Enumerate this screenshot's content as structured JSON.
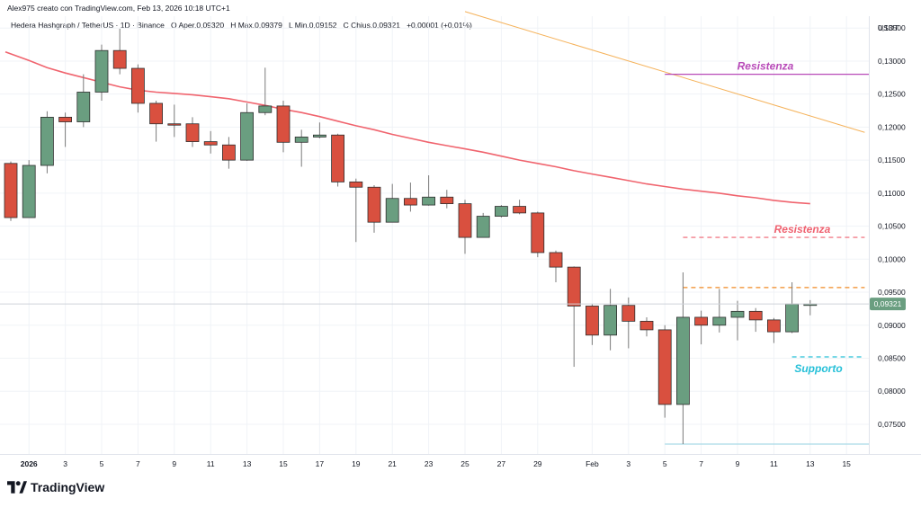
{
  "header": {
    "credit": "Alex975 creato con TradingView.com, Feb 13, 2026 10:18 UTC+1",
    "symbol_line": "Hedera Hashgraph / TetherUS · 1D · Binance",
    "open_label": "O",
    "open_value": "Aper.0,09320",
    "high_label": "H",
    "high_value": "Max.0,09379",
    "low_label": "L",
    "low_value": "Min.0,09152",
    "close_label": "C",
    "close_value": "Chius.0,09321",
    "change_value": "+0,00001 (+0,01%)"
  },
  "logo": {
    "text": "TradingView"
  },
  "colors": {
    "up": "#6a9e80",
    "down": "#d9503f",
    "ma": "#f0646e",
    "resist_magenta": "#b84ab8",
    "resist_red": "#ef6270",
    "support": "#26c0d8",
    "trend": "#f5b25a",
    "orange_dash": "#f08a24",
    "grid": "#f0f3f7"
  },
  "chart_data": {
    "type": "candlestick",
    "title": "Hedera Hashgraph / TetherUS · 1D · Binance",
    "currency_label": "USDT",
    "ylim": [
      0.0705,
      0.1368
    ],
    "y_ticks": [
      "0,13500",
      "0,13000",
      "0,12500",
      "0,12000",
      "0,11500",
      "0,11000",
      "0,10500",
      "0,10000",
      "0,09500",
      "0,09000",
      "0,08500",
      "0,08000",
      "0,07500"
    ],
    "y_tick_values": [
      0.135,
      0.13,
      0.125,
      0.12,
      0.115,
      0.11,
      0.105,
      0.1,
      0.095,
      0.09,
      0.085,
      0.08,
      0.075
    ],
    "x_ticks": [
      {
        "label": "2026",
        "index": 1,
        "bold": true
      },
      {
        "label": "3",
        "index": 3
      },
      {
        "label": "5",
        "index": 5
      },
      {
        "label": "7",
        "index": 7
      },
      {
        "label": "9",
        "index": 9
      },
      {
        "label": "11",
        "index": 11
      },
      {
        "label": "13",
        "index": 13
      },
      {
        "label": "15",
        "index": 15
      },
      {
        "label": "17",
        "index": 17
      },
      {
        "label": "19",
        "index": 19
      },
      {
        "label": "21",
        "index": 21
      },
      {
        "label": "23",
        "index": 23
      },
      {
        "label": "25",
        "index": 25
      },
      {
        "label": "27",
        "index": 27
      },
      {
        "label": "29",
        "index": 29
      },
      {
        "label": "Feb",
        "index": 32
      },
      {
        "label": "3",
        "index": 34
      },
      {
        "label": "5",
        "index": 36
      },
      {
        "label": "7",
        "index": 38
      },
      {
        "label": "9",
        "index": 40
      },
      {
        "label": "11",
        "index": 42
      },
      {
        "label": "13",
        "index": 44
      },
      {
        "label": "15",
        "index": 46
      }
    ],
    "candles": [
      {
        "o": 0.1145,
        "h": 0.1148,
        "l": 0.1058,
        "c": 0.1063
      },
      {
        "o": 0.1063,
        "h": 0.115,
        "l": 0.1063,
        "c": 0.1142
      },
      {
        "o": 0.1142,
        "h": 0.1224,
        "l": 0.113,
        "c": 0.1215
      },
      {
        "o": 0.1215,
        "h": 0.1222,
        "l": 0.117,
        "c": 0.1208
      },
      {
        "o": 0.1208,
        "h": 0.128,
        "l": 0.12,
        "c": 0.1253
      },
      {
        "o": 0.1253,
        "h": 0.1325,
        "l": 0.124,
        "c": 0.1316
      },
      {
        "o": 0.1316,
        "h": 0.1349,
        "l": 0.128,
        "c": 0.1289
      },
      {
        "o": 0.1289,
        "h": 0.1295,
        "l": 0.1222,
        "c": 0.1236
      },
      {
        "o": 0.1236,
        "h": 0.124,
        "l": 0.1178,
        "c": 0.1205
      },
      {
        "o": 0.1205,
        "h": 0.1234,
        "l": 0.1185,
        "c": 0.1203
      },
      {
        "o": 0.1205,
        "h": 0.1215,
        "l": 0.117,
        "c": 0.1178
      },
      {
        "o": 0.1178,
        "h": 0.1194,
        "l": 0.116,
        "c": 0.1173
      },
      {
        "o": 0.1173,
        "h": 0.1185,
        "l": 0.1137,
        "c": 0.115
      },
      {
        "o": 0.115,
        "h": 0.1236,
        "l": 0.1149,
        "c": 0.1222
      },
      {
        "o": 0.1222,
        "h": 0.129,
        "l": 0.1218,
        "c": 0.1232
      },
      {
        "o": 0.1232,
        "h": 0.124,
        "l": 0.1162,
        "c": 0.1177
      },
      {
        "o": 0.1177,
        "h": 0.1196,
        "l": 0.114,
        "c": 0.1185
      },
      {
        "o": 0.1185,
        "h": 0.1207,
        "l": 0.1183,
        "c": 0.1188
      },
      {
        "o": 0.1188,
        "h": 0.119,
        "l": 0.111,
        "c": 0.1117
      },
      {
        "o": 0.1117,
        "h": 0.1122,
        "l": 0.1026,
        "c": 0.1109
      },
      {
        "o": 0.1109,
        "h": 0.1112,
        "l": 0.104,
        "c": 0.1056
      },
      {
        "o": 0.1056,
        "h": 0.1114,
        "l": 0.1056,
        "c": 0.1092
      },
      {
        "o": 0.1092,
        "h": 0.1116,
        "l": 0.1072,
        "c": 0.1082
      },
      {
        "o": 0.1082,
        "h": 0.1127,
        "l": 0.1081,
        "c": 0.1094
      },
      {
        "o": 0.1094,
        "h": 0.1105,
        "l": 0.1077,
        "c": 0.1084
      },
      {
        "o": 0.1084,
        "h": 0.109,
        "l": 0.1008,
        "c": 0.1033
      },
      {
        "o": 0.1033,
        "h": 0.107,
        "l": 0.1033,
        "c": 0.1065
      },
      {
        "o": 0.1065,
        "h": 0.1082,
        "l": 0.1063,
        "c": 0.108
      },
      {
        "o": 0.108,
        "h": 0.109,
        "l": 0.1068,
        "c": 0.107
      },
      {
        "o": 0.107,
        "h": 0.1072,
        "l": 0.1003,
        "c": 0.101
      },
      {
        "o": 0.101,
        "h": 0.1013,
        "l": 0.0965,
        "c": 0.0988
      },
      {
        "o": 0.0988,
        "h": 0.0989,
        "l": 0.0837,
        "c": 0.0929
      },
      {
        "o": 0.0929,
        "h": 0.0932,
        "l": 0.087,
        "c": 0.0885
      },
      {
        "o": 0.0885,
        "h": 0.0955,
        "l": 0.0862,
        "c": 0.093
      },
      {
        "o": 0.093,
        "h": 0.0942,
        "l": 0.0865,
        "c": 0.0906
      },
      {
        "o": 0.0906,
        "h": 0.0912,
        "l": 0.0883,
        "c": 0.0893
      },
      {
        "o": 0.0893,
        "h": 0.09,
        "l": 0.076,
        "c": 0.078
      },
      {
        "o": 0.078,
        "h": 0.098,
        "l": 0.072,
        "c": 0.0912
      },
      {
        "o": 0.0912,
        "h": 0.0922,
        "l": 0.0871,
        "c": 0.09
      },
      {
        "o": 0.09,
        "h": 0.0955,
        "l": 0.0889,
        "c": 0.0912
      },
      {
        "o": 0.0912,
        "h": 0.0937,
        "l": 0.0877,
        "c": 0.0921
      },
      {
        "o": 0.0921,
        "h": 0.0926,
        "l": 0.089,
        "c": 0.0908
      },
      {
        "o": 0.0908,
        "h": 0.0911,
        "l": 0.0873,
        "c": 0.089
      },
      {
        "o": 0.089,
        "h": 0.0965,
        "l": 0.0888,
        "c": 0.0932
      },
      {
        "o": 0.0932,
        "h": 0.0938,
        "l": 0.0915,
        "c": 0.0932
      }
    ],
    "moving_average": {
      "index": [
        0,
        1,
        2,
        3,
        4,
        5,
        6,
        7,
        8,
        9,
        10,
        11,
        12,
        13,
        14,
        15,
        16,
        17,
        18,
        19,
        20,
        21,
        22,
        23,
        24,
        25,
        26,
        27,
        28,
        29,
        30,
        31,
        32,
        33,
        34,
        35,
        36,
        37,
        38,
        39,
        40,
        41,
        42,
        43,
        44
      ],
      "values": [
        0.1314,
        0.1301,
        0.129,
        0.1282,
        0.1275,
        0.1268,
        0.1261,
        0.1256,
        0.1253,
        0.1251,
        0.1249,
        0.1246,
        0.1243,
        0.1238,
        0.1233,
        0.1227,
        0.1222,
        0.1216,
        0.1209,
        0.1202,
        0.1196,
        0.1189,
        0.1183,
        0.1177,
        0.1172,
        0.1167,
        0.1162,
        0.1156,
        0.115,
        0.1145,
        0.114,
        0.1134,
        0.1129,
        0.1124,
        0.1119,
        0.1114,
        0.111,
        0.1106,
        0.1103,
        0.11,
        0.1096,
        0.1093,
        0.1089,
        0.1086,
        0.1084
      ]
    },
    "current_price_label": "0,09321",
    "current_price": 0.09321,
    "annotations": {
      "resist_top": {
        "label": "Resistenza",
        "value": 0.128,
        "from_index": 36,
        "to_index": 48
      },
      "resist_mid": {
        "label": "Resistenza",
        "value": 0.1033,
        "from_index": 37,
        "to_index": 47
      },
      "orange_level": {
        "value": 0.0957,
        "from_index": 37,
        "to_index": 47
      },
      "support": {
        "label": "Supporto",
        "value": 0.0852,
        "from_index": 43,
        "to_index": 47
      },
      "bottom_line": {
        "value": 0.072,
        "from_index": 36,
        "to_index": 48
      },
      "trendline": {
        "from_index": 25,
        "from_value": 0.1375,
        "to_index": 47,
        "to_value": 0.1192
      }
    }
  }
}
